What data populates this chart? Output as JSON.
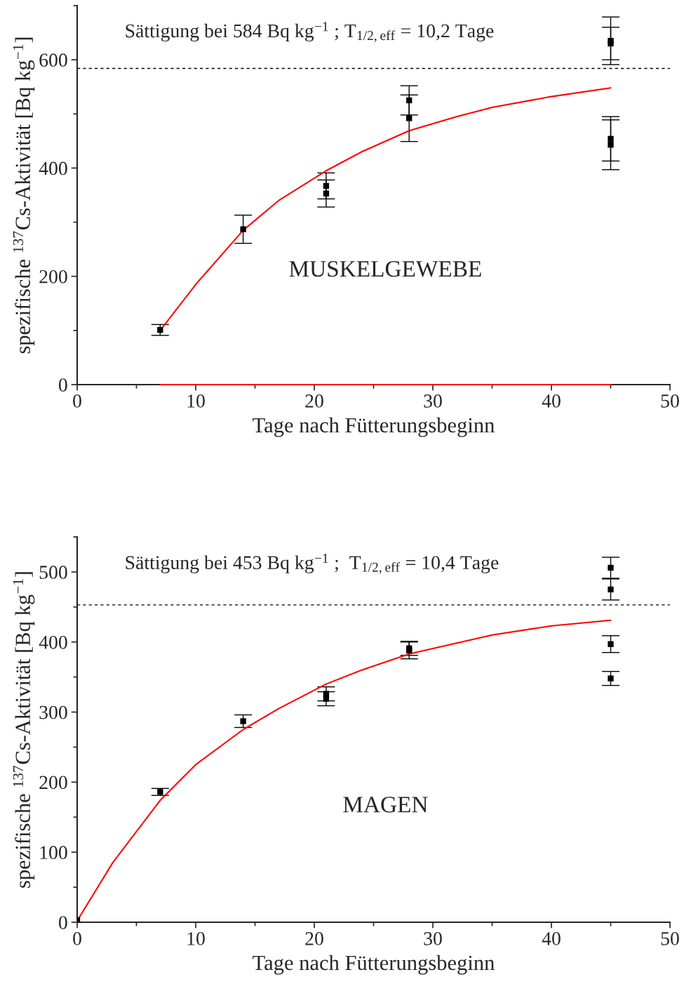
{
  "chart_data": [
    {
      "type": "scatter",
      "xlabel": "Tage nach Fütterungsbeginn",
      "ylabel": "spezifische $^{137}$Cs-Aktivität [Bq kg$^{−1}$]",
      "xlim": [
        0,
        50
      ],
      "xticks": [
        0,
        10,
        20,
        30,
        40,
        50
      ],
      "ylim": [
        0,
        700
      ],
      "yticks": [
        0,
        200,
        400,
        600
      ],
      "grid": false,
      "legend": false,
      "annotations": [
        "Sättigung bei 584 Bq kg$^{−1}$ ; T$_{1/2,eff}$ = 10,2 Tage",
        "MUSKELGEWEBE"
      ],
      "ref_lines": [
        {
          "axis": "y",
          "value": 584,
          "color": "#000000",
          "line_style": "dotted"
        }
      ],
      "series": [
        {
          "color": "#000000",
          "marker": "square",
          "x": [
            7,
            14,
            21,
            21,
            28,
            28,
            45,
            45,
            45,
            45
          ],
          "values": [
            101,
            287,
            367,
            353,
            525,
            492,
            635,
            630,
            454,
            443
          ],
          "errors": [
            10,
            26,
            24,
            25,
            27,
            43,
            44,
            30,
            41,
            46
          ]
        },
        {
          "type": "line",
          "color": "#ff0000",
          "marker": "none",
          "line_style": "solid",
          "x": [
            7,
            10,
            14,
            17,
            21,
            24,
            28,
            32,
            35,
            40,
            45
          ],
          "values": [
            100,
            185,
            285,
            340,
            395,
            430,
            469,
            495,
            512,
            532,
            548
          ]
        },
        {
          "type": "line",
          "color": "#ff0000",
          "marker": "none",
          "line_style": "solid",
          "x": [
            7,
            45
          ],
          "values": [
            0,
            0
          ]
        }
      ]
    },
    {
      "type": "scatter",
      "xlabel": "Tage nach Fütterungsbeginn",
      "ylabel": "spezifische $^{137}$Cs-Aktivität [Bq kg$^{−1}$]",
      "xlim": [
        0,
        50
      ],
      "xticks": [
        0,
        10,
        20,
        30,
        40,
        50
      ],
      "ylim": [
        0,
        550
      ],
      "yticks": [
        0,
        100,
        200,
        300,
        400,
        500
      ],
      "grid": false,
      "legend": false,
      "annotations": [
        "Sättigung bei 453 Bq kg$^{−1}$ ;  T$_{1/2,eff}$ = 10,4 Tage",
        "MAGEN"
      ],
      "ref_lines": [
        {
          "axis": "y",
          "value": 453,
          "color": "#000000",
          "line_style": "dotted"
        }
      ],
      "series": [
        {
          "color": "#000000",
          "marker": "square",
          "x": [
            0,
            7,
            14,
            21,
            21,
            28,
            28,
            45,
            45,
            45,
            45
          ],
          "values": [
            3,
            186,
            287,
            326,
            319,
            391,
            388,
            506,
            475,
            397,
            348
          ],
          "errors": [
            null,
            5,
            9,
            10,
            10,
            10,
            12,
            15,
            15,
            12,
            10
          ]
        },
        {
          "type": "line",
          "color": "#ff0000",
          "marker": "none",
          "line_style": "solid",
          "x": [
            0,
            3,
            7,
            10,
            14,
            17,
            21,
            24,
            28,
            35,
            40,
            45
          ],
          "values": [
            2,
            85,
            174,
            225,
            275,
            305,
            340,
            360,
            383,
            410,
            423,
            431
          ]
        }
      ]
    }
  ]
}
